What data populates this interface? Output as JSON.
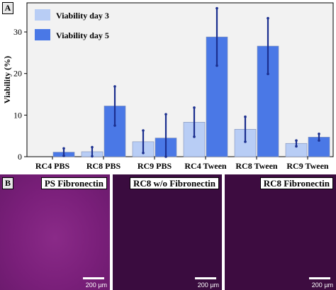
{
  "panel_a_label": "A",
  "panel_b_label": "B",
  "chart_data": {
    "type": "bar",
    "categories": [
      "RC4 PBS",
      "RC8 PBS",
      "RC9 PBS",
      "RC4 Tween",
      "RC8 Tween",
      "RC9 Tween"
    ],
    "series": [
      {
        "name": "Viability day 3",
        "color": "#b8cdf5",
        "values": [
          0.0,
          1.2,
          3.6,
          8.3,
          6.6,
          3.2
        ],
        "errors": [
          0.0,
          1.1,
          2.7,
          3.5,
          3.0,
          0.7
        ]
      },
      {
        "name": "Viability day 5",
        "color": "#4a78e6",
        "values": [
          1.1,
          12.2,
          4.5,
          28.8,
          26.6,
          4.7
        ],
        "errors": [
          0.9,
          4.7,
          5.7,
          6.9,
          6.7,
          0.8
        ]
      }
    ],
    "xlabel": "",
    "ylabel": "Viability (%)",
    "ylim": [
      0,
      37
    ],
    "yticks": [
      0,
      10,
      20,
      30
    ],
    "errorbar_color": "#1b2f8f",
    "legend_position": "top-left"
  },
  "micrographs": [
    {
      "label": "PS Fibronectin",
      "color": "#7a1f7a",
      "scale_text": "200 µm"
    },
    {
      "label": "RC8 w/o Fibronectin",
      "color": "#3a0c3f",
      "scale_text": "200 µm"
    },
    {
      "label": "RC8 Fibronectin",
      "color": "#3d0c40",
      "scale_text": "200 µm"
    }
  ]
}
